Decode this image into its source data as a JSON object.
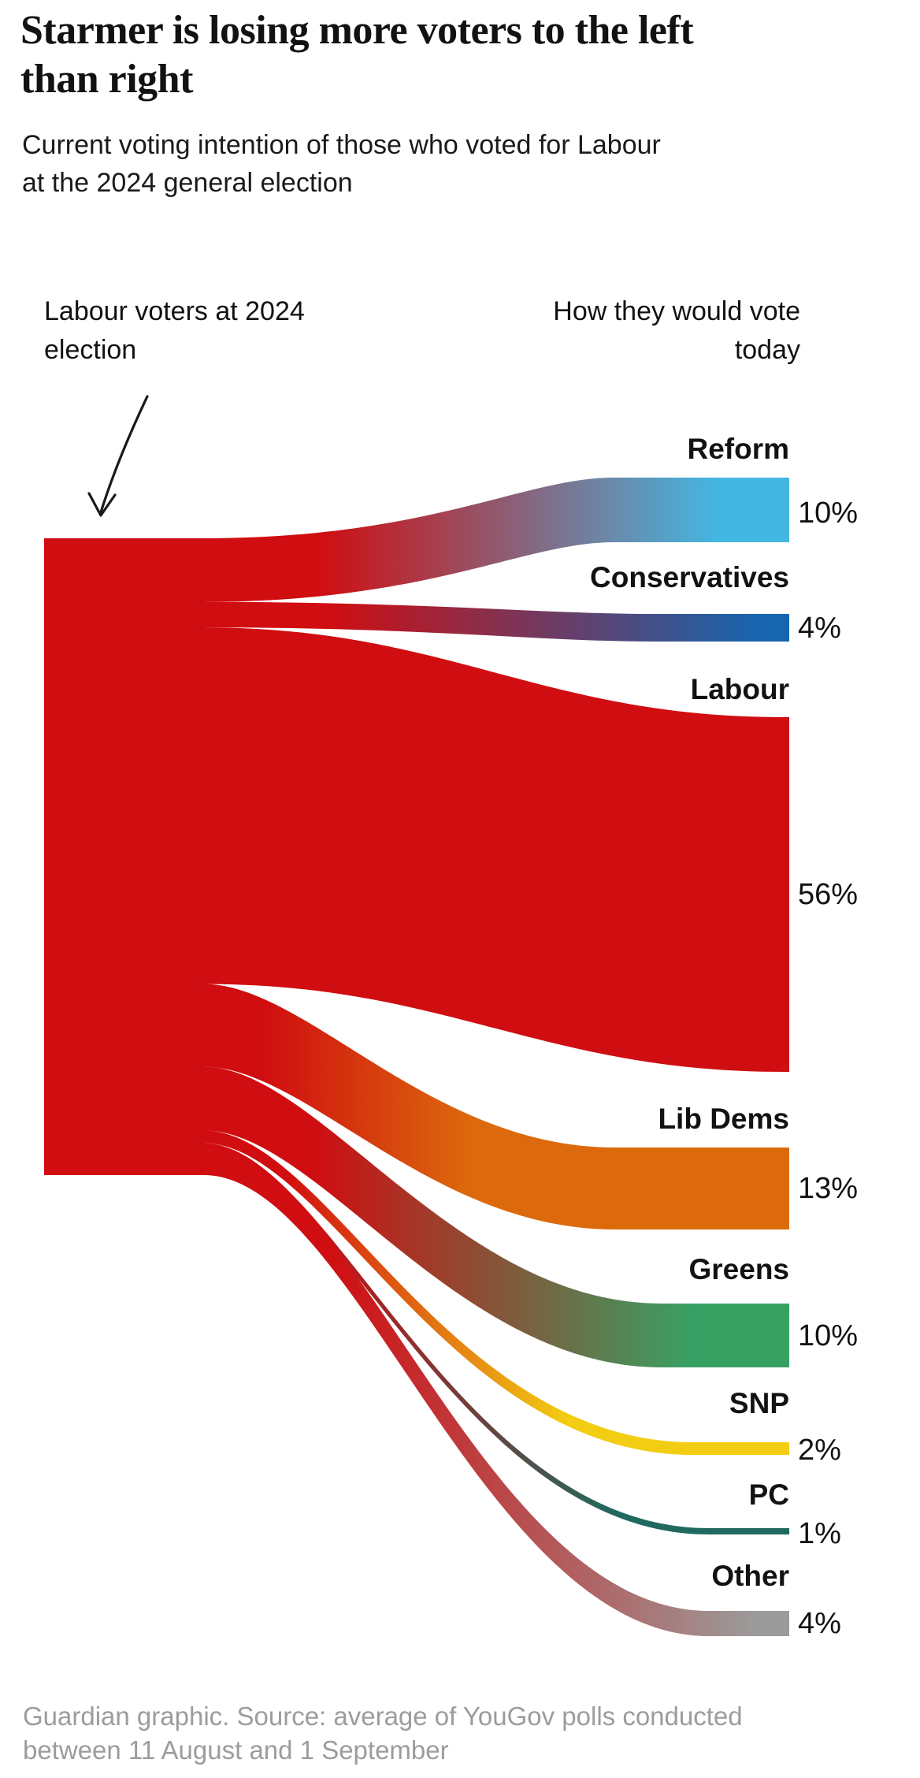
{
  "header": {
    "title": [
      "Starmer is losing more voters to the left",
      "than right"
    ],
    "subtitle": [
      "Current voting intention of those who voted for Labour",
      "at the 2024 general election"
    ]
  },
  "annotations": {
    "source_label": [
      "Labour voters at 2024",
      "election"
    ],
    "target_label": [
      "How they would vote",
      "today"
    ]
  },
  "footer": {
    "line1": "Guardian graphic. Source: average of YouGov polls conducted",
    "line2": "between 11 August and 1 September"
  },
  "chart_data": {
    "type": "sankey",
    "title": "Starmer is losing more voters to the left than right",
    "subtitle": "Current voting intention of those who voted for Labour at the 2024 general election",
    "unit": "%",
    "source_node": {
      "label": "Labour voters at 2024 election",
      "value": 100,
      "color": "#d00d10"
    },
    "flows": [
      {
        "target": "Reform",
        "value": 10,
        "label": "10%",
        "color": "#44b6e2"
      },
      {
        "target": "Conservatives",
        "value": 4,
        "label": "4%",
        "color": "#1765ae"
      },
      {
        "target": "Labour",
        "value": 56,
        "label": "56%",
        "color": "#d00d10"
      },
      {
        "target": "Lib Dems",
        "value": 13,
        "label": "13%",
        "color": "#dc6a0c"
      },
      {
        "target": "Greens",
        "value": 10,
        "label": "10%",
        "color": "#37a164"
      },
      {
        "target": "SNP",
        "value": 2,
        "label": "2%",
        "color": "#f2cd13"
      },
      {
        "target": "PC",
        "value": 1,
        "label": "1%",
        "color": "#20695f"
      },
      {
        "target": "Other",
        "value": 4,
        "label": "4%",
        "color": "#9b9b9b"
      }
    ],
    "source_note": "Guardian graphic. Source: average of YouGov polls conducted between 11 August and 1 September"
  }
}
